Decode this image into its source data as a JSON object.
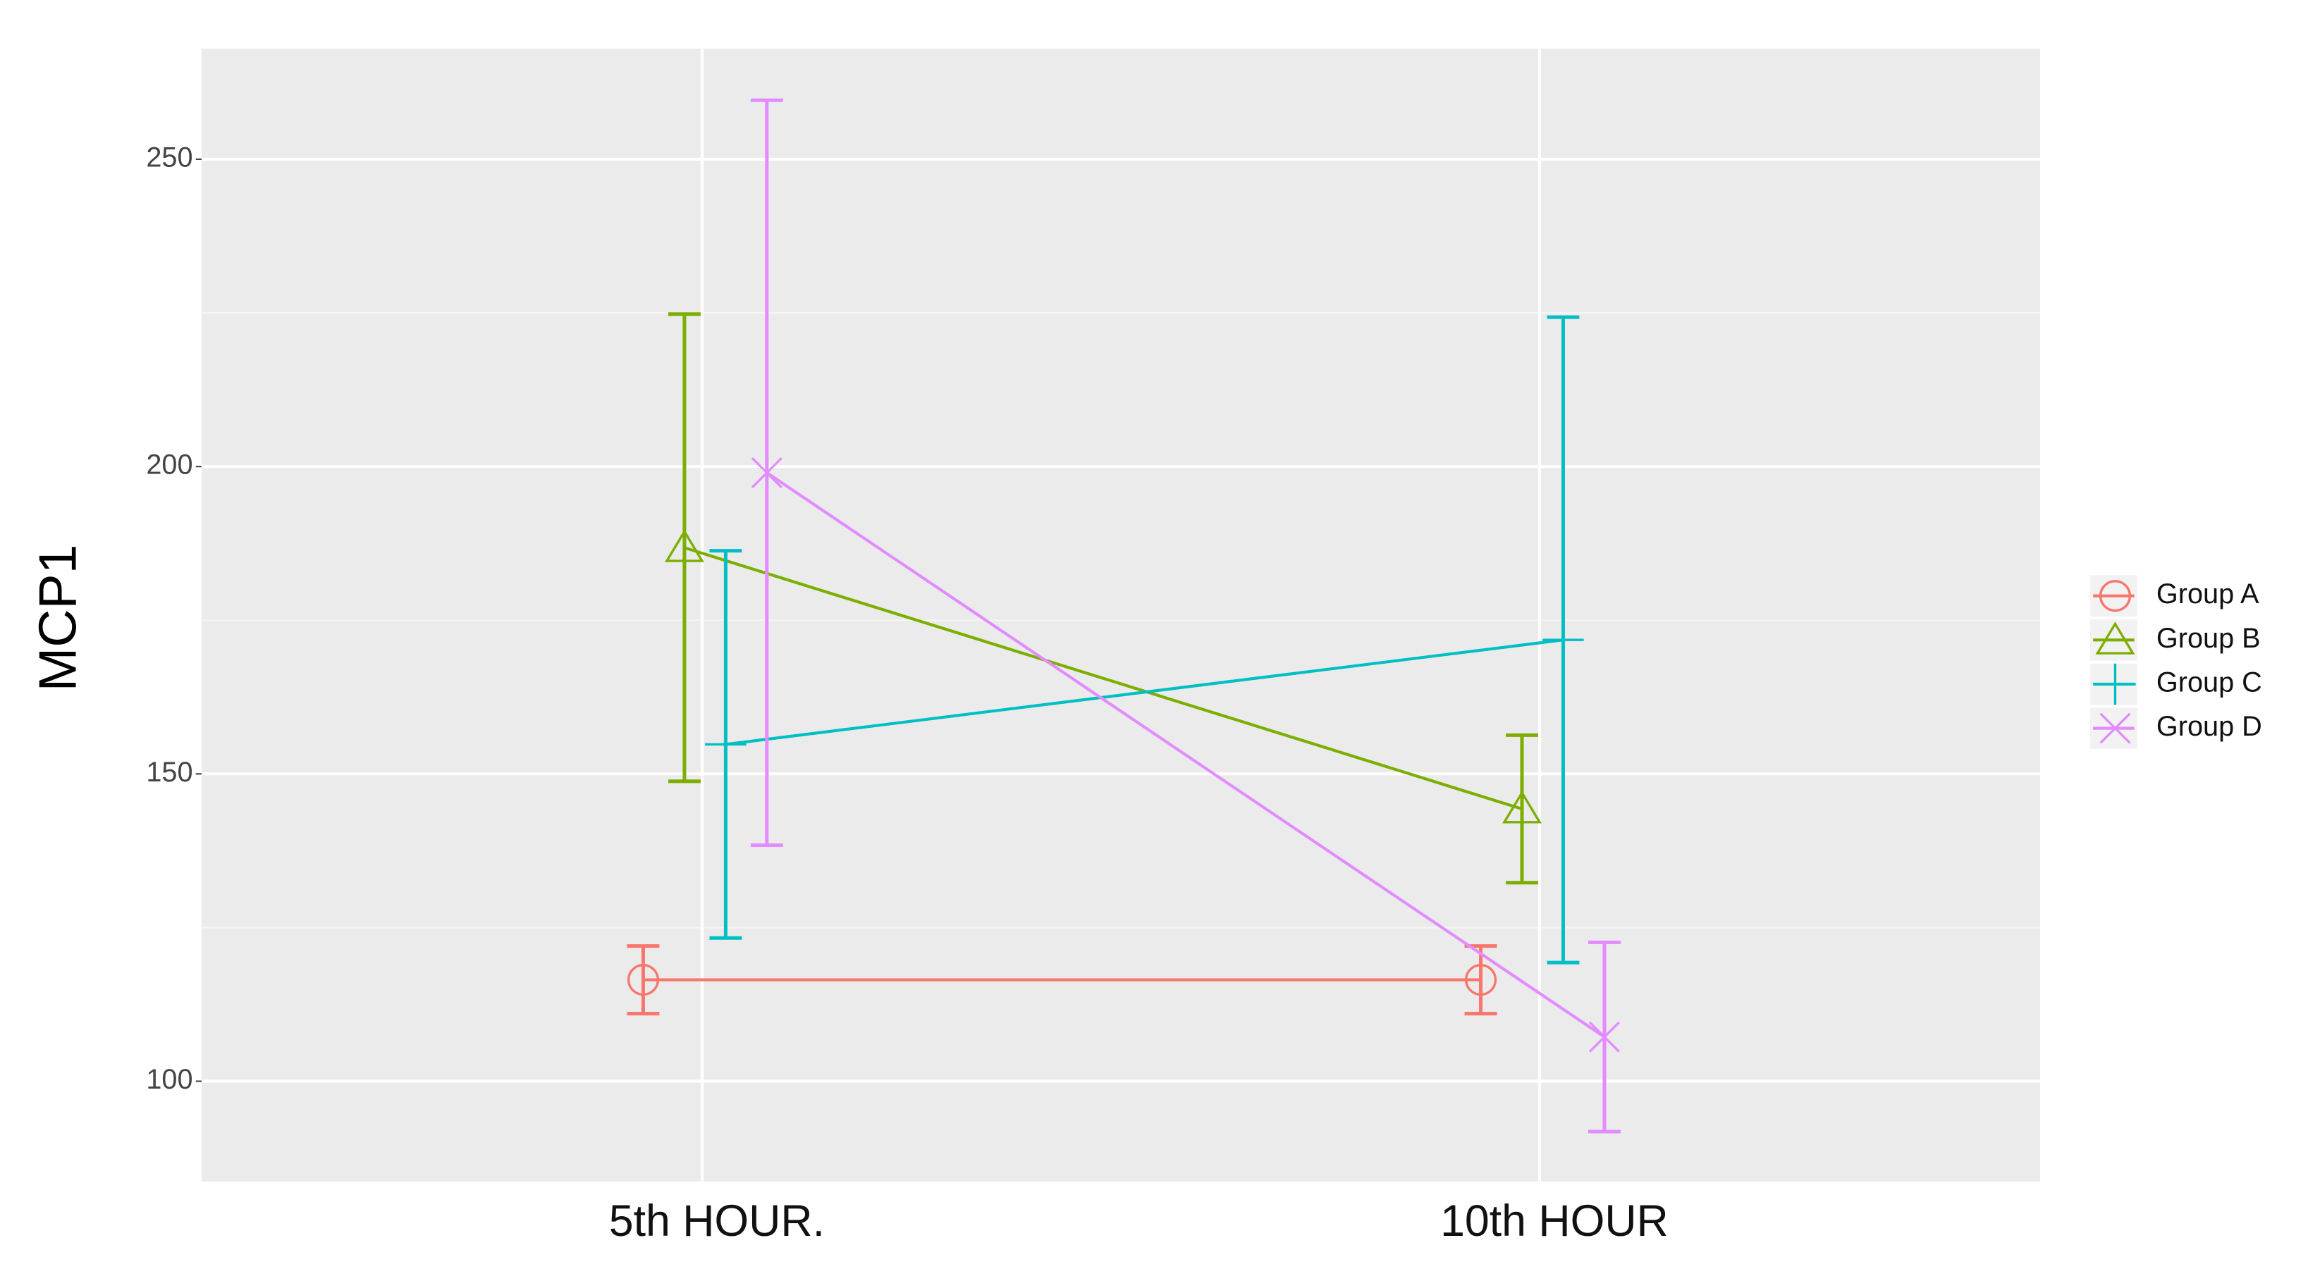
{
  "chart_data": {
    "type": "line",
    "y_label": "MCP1",
    "categories": [
      "5th HOUR.",
      "10th HOUR"
    ],
    "ylim": [
      83.7,
      268
    ],
    "yticks": [
      100,
      150,
      200,
      250
    ],
    "yminorticks": [
      125,
      175,
      225
    ],
    "grid": true,
    "legend": "right",
    "series": [
      {
        "name": "Group A",
        "color": "#f8766d",
        "marker": "circle",
        "values": [
          116.5,
          116.5
        ],
        "errors": [
          5.5,
          5.5
        ]
      },
      {
        "name": "Group B",
        "color": "#7cae00",
        "marker": "triangle",
        "values": [
          186.8,
          144.3
        ],
        "errors": [
          38,
          12
        ]
      },
      {
        "name": "Group C",
        "color": "#00bfc4",
        "marker": "plus",
        "values": [
          154.8,
          171.8
        ],
        "errors": [
          31.5,
          52.5
        ]
      },
      {
        "name": "Group D",
        "color": "#e28cff",
        "marker": "cross",
        "values": [
          199,
          107.2
        ],
        "errors": [
          60.6,
          15.4
        ]
      }
    ]
  }
}
